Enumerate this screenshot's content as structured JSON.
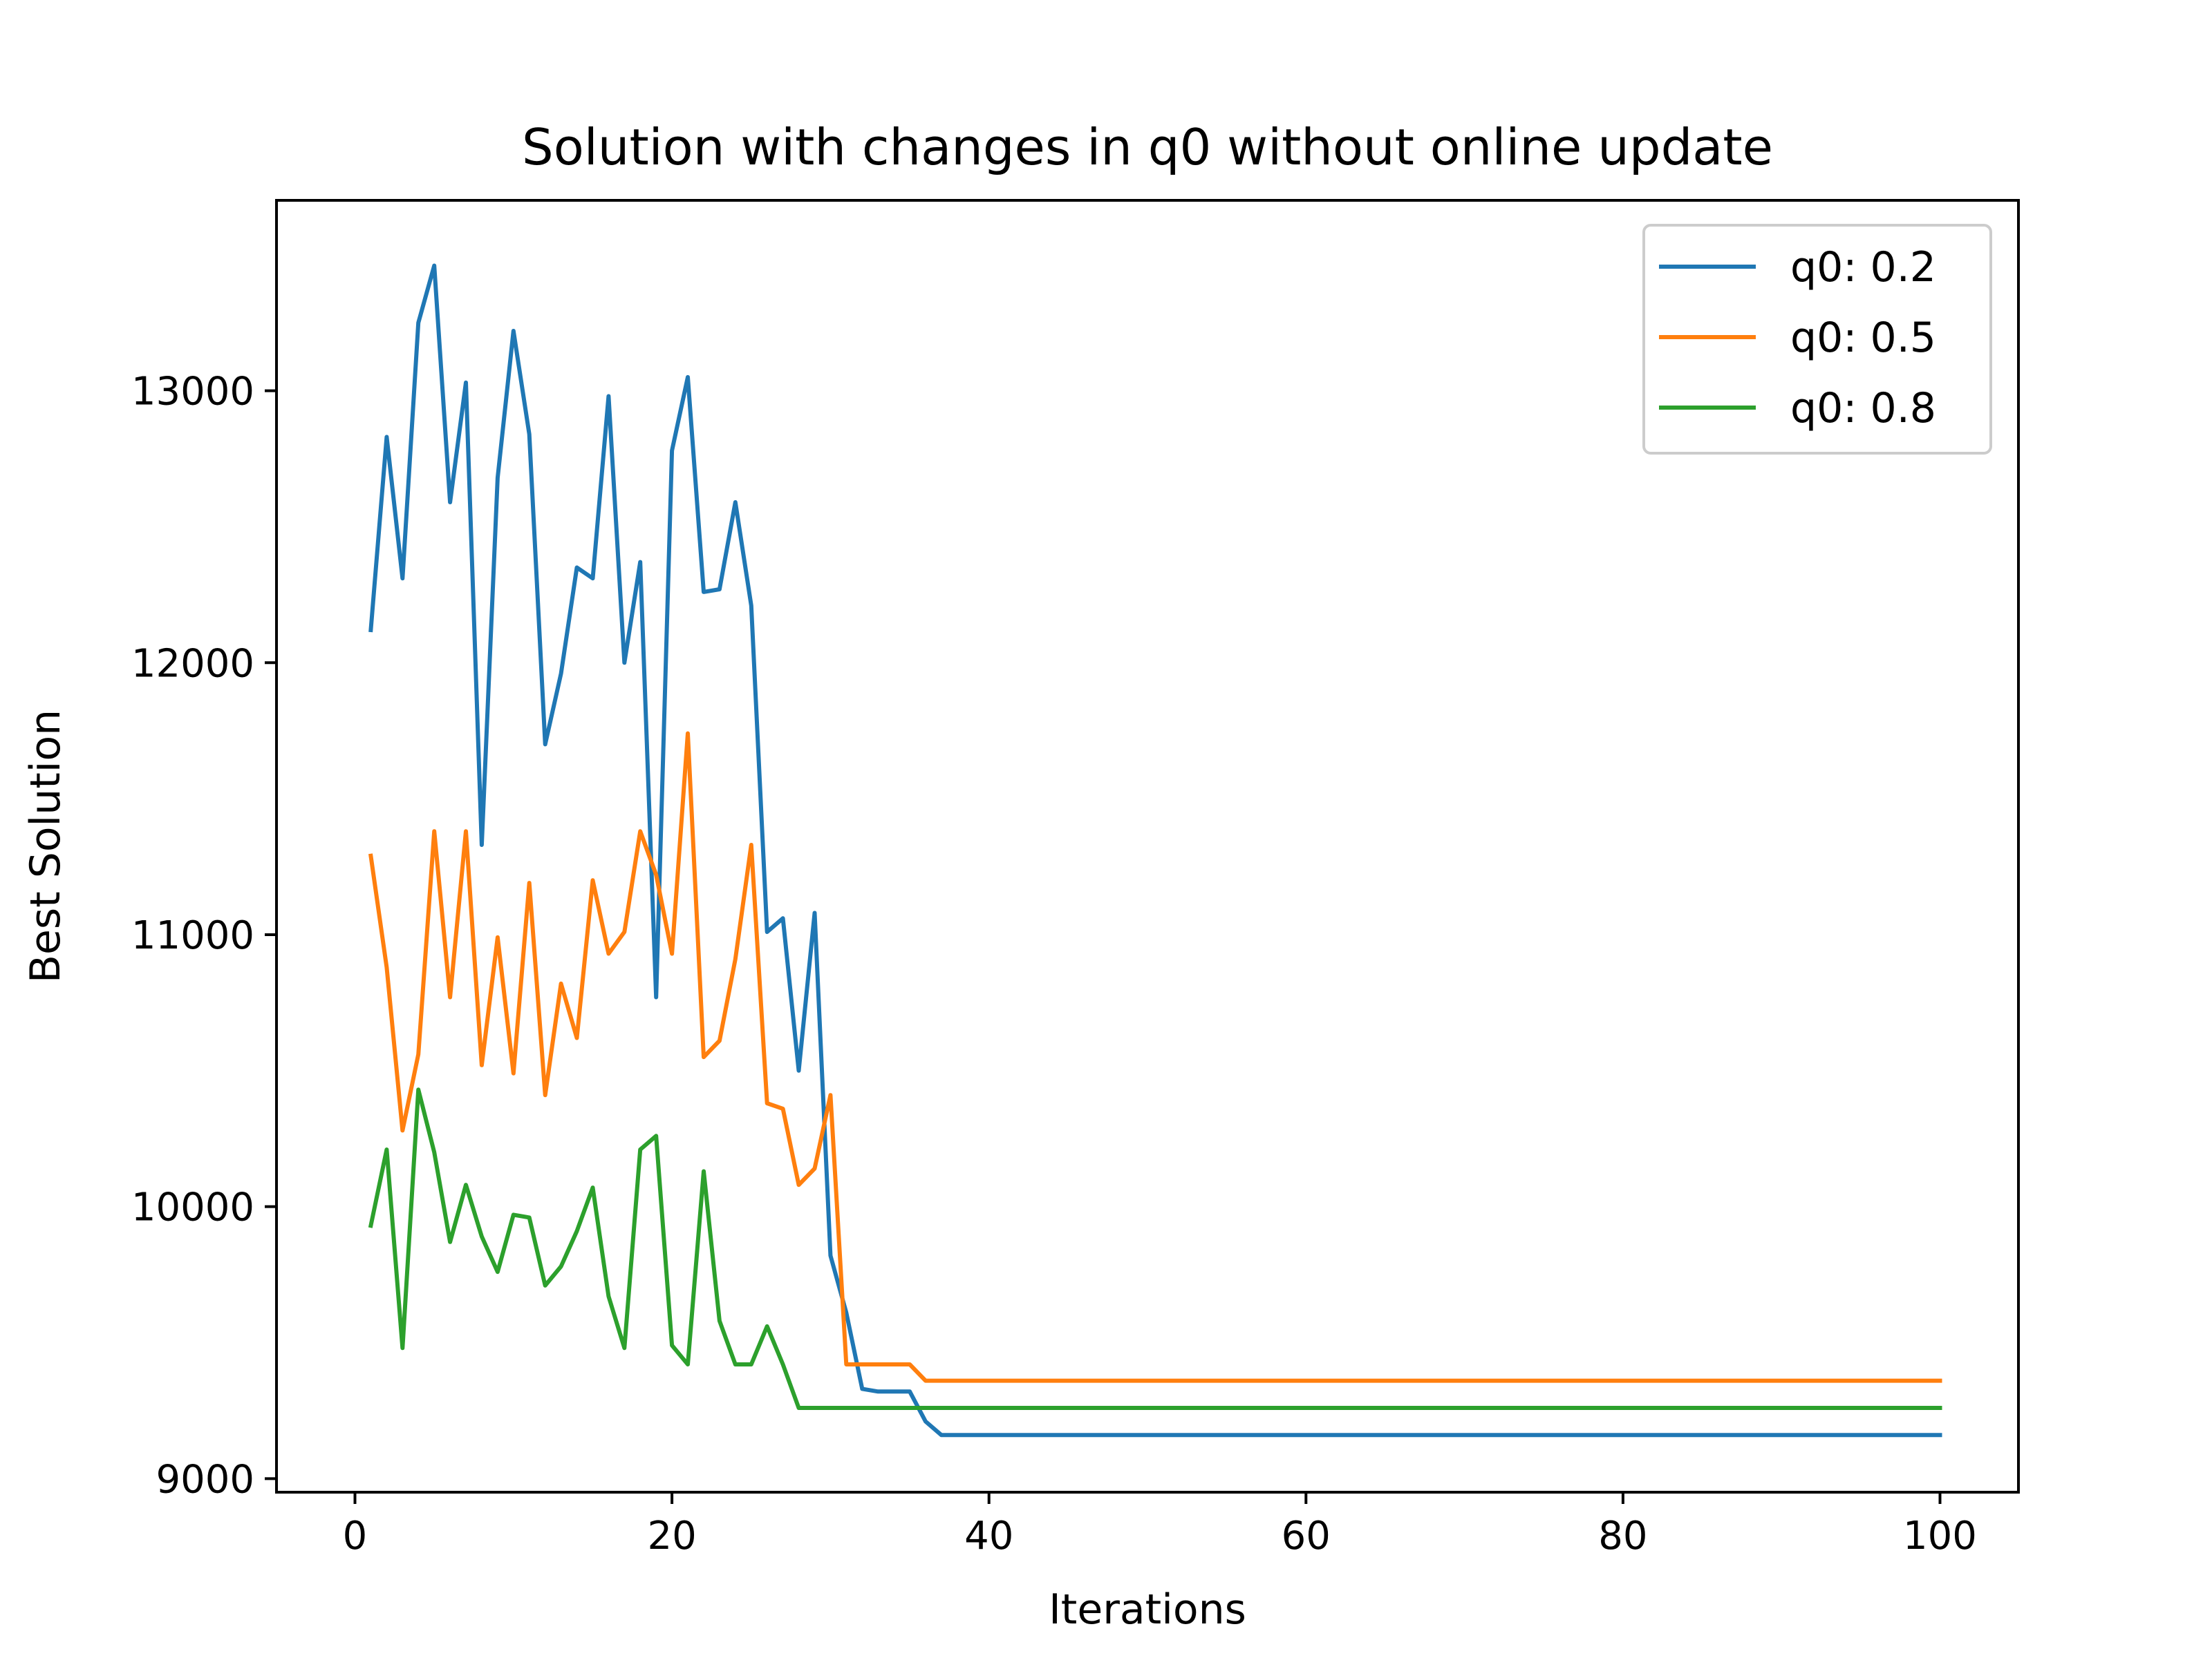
{
  "chart_data": {
    "type": "line",
    "title": "Solution with changes in q0 without online update",
    "xlabel": "Iterations",
    "ylabel": "Best Solution",
    "xlim": [
      -4.95,
      104.95
    ],
    "ylim": [
      8950,
      13700
    ],
    "xticks": [
      0,
      20,
      40,
      60,
      80,
      100
    ],
    "yticks": [
      9000,
      10000,
      11000,
      12000,
      13000
    ],
    "grid": false,
    "legend_position": "top-right",
    "series": [
      {
        "name": "q0: 0.2",
        "color": "#1f77b4",
        "points": [
          [
            1,
            12120
          ],
          [
            2,
            12830
          ],
          [
            3,
            12310
          ],
          [
            4,
            13250
          ],
          [
            5,
            13460
          ],
          [
            6,
            12590
          ],
          [
            7,
            13030
          ],
          [
            8,
            11330
          ],
          [
            9,
            12680
          ],
          [
            10,
            13220
          ],
          [
            11,
            12840
          ],
          [
            12,
            11700
          ],
          [
            13,
            11960
          ],
          [
            14,
            12350
          ],
          [
            15,
            12310
          ],
          [
            16,
            12980
          ],
          [
            17,
            12000
          ],
          [
            18,
            12370
          ],
          [
            19,
            10770
          ],
          [
            20,
            12780
          ],
          [
            21,
            13050
          ],
          [
            22,
            12260
          ],
          [
            23,
            12270
          ],
          [
            24,
            12590
          ],
          [
            25,
            12210
          ],
          [
            26,
            11010
          ],
          [
            27,
            11060
          ],
          [
            28,
            10500
          ],
          [
            29,
            11080
          ],
          [
            30,
            9820
          ],
          [
            31,
            9610
          ],
          [
            32,
            9330
          ],
          [
            33,
            9320
          ],
          [
            34,
            9320
          ],
          [
            35,
            9320
          ],
          [
            36,
            9210
          ],
          [
            37,
            9160
          ],
          [
            100,
            9160
          ]
        ]
      },
      {
        "name": "q0: 0.5",
        "color": "#ff7f0e",
        "points": [
          [
            1,
            11290
          ],
          [
            2,
            10880
          ],
          [
            3,
            10280
          ],
          [
            4,
            10560
          ],
          [
            5,
            11380
          ],
          [
            6,
            10770
          ],
          [
            7,
            11380
          ],
          [
            8,
            10520
          ],
          [
            9,
            10990
          ],
          [
            10,
            10490
          ],
          [
            11,
            11190
          ],
          [
            12,
            10410
          ],
          [
            13,
            10820
          ],
          [
            14,
            10620
          ],
          [
            15,
            11200
          ],
          [
            16,
            10930
          ],
          [
            17,
            11010
          ],
          [
            18,
            11380
          ],
          [
            19,
            11220
          ],
          [
            20,
            10930
          ],
          [
            21,
            11740
          ],
          [
            22,
            10550
          ],
          [
            23,
            10610
          ],
          [
            24,
            10910
          ],
          [
            25,
            11330
          ],
          [
            26,
            10380
          ],
          [
            27,
            10360
          ],
          [
            28,
            10080
          ],
          [
            29,
            10140
          ],
          [
            30,
            10410
          ],
          [
            31,
            9420
          ],
          [
            32,
            9420
          ],
          [
            33,
            9420
          ],
          [
            34,
            9420
          ],
          [
            35,
            9420
          ],
          [
            36,
            9360
          ],
          [
            100,
            9360
          ]
        ]
      },
      {
        "name": "q0: 0.8",
        "color": "#2ca02c",
        "points": [
          [
            1,
            9930
          ],
          [
            2,
            10210
          ],
          [
            3,
            9480
          ],
          [
            4,
            10430
          ],
          [
            5,
            10200
          ],
          [
            6,
            9870
          ],
          [
            7,
            10080
          ],
          [
            8,
            9890
          ],
          [
            9,
            9760
          ],
          [
            10,
            9970
          ],
          [
            11,
            9960
          ],
          [
            12,
            9710
          ],
          [
            13,
            9780
          ],
          [
            14,
            9910
          ],
          [
            15,
            10070
          ],
          [
            16,
            9670
          ],
          [
            17,
            9480
          ],
          [
            18,
            10210
          ],
          [
            19,
            10260
          ],
          [
            20,
            9490
          ],
          [
            21,
            9420
          ],
          [
            22,
            10130
          ],
          [
            23,
            9580
          ],
          [
            24,
            9420
          ],
          [
            25,
            9420
          ],
          [
            26,
            9560
          ],
          [
            27,
            9420
          ],
          [
            28,
            9260
          ],
          [
            100,
            9260
          ]
        ]
      }
    ]
  }
}
